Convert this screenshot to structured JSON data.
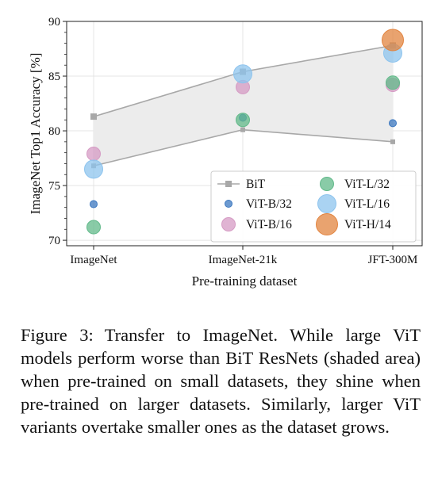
{
  "chart_data": {
    "type": "scatter",
    "xlabel": "Pre-training dataset",
    "ylabel": "ImageNet Top1 Accuracy [%]",
    "categories": [
      "ImageNet",
      "ImageNet-21k",
      "JFT-300M"
    ],
    "ylim": [
      69.5,
      90
    ],
    "yticks": [
      70,
      75,
      80,
      85,
      90
    ],
    "grid": true,
    "legend_placement": "bottom-right",
    "bit_band": {
      "name": "BiT",
      "upper": [
        81.3,
        85.4,
        87.8
      ],
      "lower": [
        76.8,
        80.1,
        79.0
      ],
      "color": "#a8a8a8",
      "fill": "#ececec"
    },
    "series": [
      {
        "name": "ViT-B/32",
        "values": [
          73.3,
          81.2,
          80.7
        ],
        "color": "#3c78c0",
        "size": "small"
      },
      {
        "name": "ViT-B/16",
        "values": [
          77.9,
          84.0,
          84.2
        ],
        "color": "#d59bc4",
        "size": "medium"
      },
      {
        "name": "ViT-L/32",
        "values": [
          71.2,
          81.0,
          84.4
        ],
        "color": "#62b98a",
        "size": "medium"
      },
      {
        "name": "ViT-L/16",
        "values": [
          76.5,
          85.2,
          87.1
        ],
        "color": "#8ec4ee",
        "size": "large"
      },
      {
        "name": "ViT-H/14",
        "values": [
          null,
          null,
          88.3
        ],
        "color": "#e2843f",
        "size": "xlarge"
      }
    ],
    "legend": [
      "BiT",
      "ViT-B/32",
      "ViT-B/16",
      "ViT-L/32",
      "ViT-L/16",
      "ViT-H/14"
    ]
  },
  "caption": {
    "label": "Figure 3:",
    "text": "Transfer to ImageNet. While large ViT models perform worse than BiT ResNets (shaded area) when pre-trained on small datasets, they shine when pre-trained on larger datasets. Similarly, larger ViT variants overtake smaller ones as the dataset grows."
  }
}
